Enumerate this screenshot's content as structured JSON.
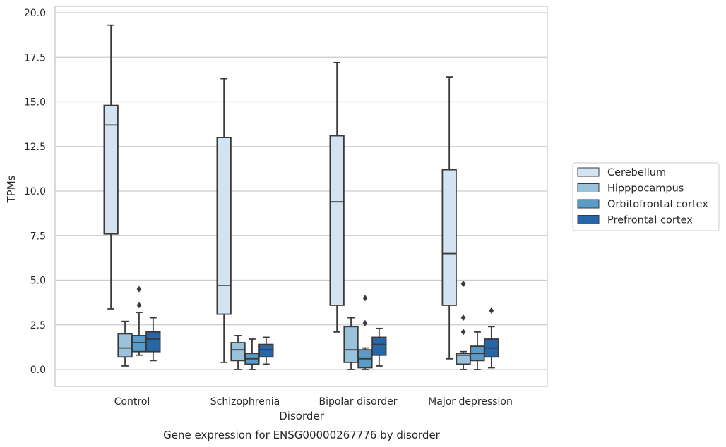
{
  "chart_data": {
    "type": "box",
    "title": "Gene expression for ENSG00000267776 by disorder",
    "xlabel": "Disorder",
    "ylabel": "TPMs",
    "ylim": [
      -0.9,
      20.3
    ],
    "yticks": [
      0.0,
      2.5,
      5.0,
      7.5,
      10.0,
      12.5,
      15.0,
      17.5,
      20.0
    ],
    "ytick_labels": [
      "0.0",
      "2.5",
      "5.0",
      "7.5",
      "10.0",
      "12.5",
      "15.0",
      "17.5",
      "20.0"
    ],
    "grid": "horizontal",
    "legend_position": "right",
    "categories": [
      "Control",
      "Schizophrenia",
      "Bipolar disorder",
      "Major depression"
    ],
    "series": [
      {
        "name": "Cerebellum",
        "color": "#d3e3f2",
        "boxes": [
          {
            "whislo": 3.4,
            "q1": 7.6,
            "med": 13.7,
            "q3": 14.8,
            "whishi": 19.3,
            "fliers": []
          },
          {
            "whislo": 0.4,
            "q1": 3.1,
            "med": 4.7,
            "q3": 13.0,
            "whishi": 16.3,
            "fliers": []
          },
          {
            "whislo": 2.1,
            "q1": 3.6,
            "med": 9.4,
            "q3": 13.1,
            "whishi": 17.2,
            "fliers": []
          },
          {
            "whislo": 0.6,
            "q1": 3.6,
            "med": 6.5,
            "q3": 11.2,
            "whishi": 16.4,
            "fliers": []
          }
        ]
      },
      {
        "name": "Hipppocampus",
        "color": "#9ac2db",
        "boxes": [
          {
            "whislo": 0.2,
            "q1": 0.7,
            "med": 1.2,
            "q3": 2.0,
            "whishi": 2.7,
            "fliers": []
          },
          {
            "whislo": 0.0,
            "q1": 0.5,
            "med": 1.1,
            "q3": 1.5,
            "whishi": 1.9,
            "fliers": []
          },
          {
            "whislo": 0.0,
            "q1": 0.4,
            "med": 1.1,
            "q3": 2.4,
            "whishi": 2.9,
            "fliers": []
          },
          {
            "whislo": 0.0,
            "q1": 0.3,
            "med": 0.8,
            "q3": 0.9,
            "whishi": 1.0,
            "fliers": [
              2.1,
              2.9,
              4.8
            ]
          }
        ]
      },
      {
        "name": "Orbitofrontal cortex",
        "color": "#5a9cc9",
        "boxes": [
          {
            "whislo": 0.8,
            "q1": 1.0,
            "med": 1.5,
            "q3": 1.9,
            "whishi": 3.2,
            "fliers": [
              3.6,
              4.5
            ]
          },
          {
            "whislo": 0.0,
            "q1": 0.3,
            "med": 0.6,
            "q3": 0.9,
            "whishi": 1.7,
            "fliers": []
          },
          {
            "whislo": 0.0,
            "q1": 0.1,
            "med": 0.6,
            "q3": 1.1,
            "whishi": 1.2,
            "fliers": [
              2.6,
              4.0
            ]
          },
          {
            "whislo": 0.0,
            "q1": 0.5,
            "med": 0.9,
            "q3": 1.3,
            "whishi": 2.1,
            "fliers": []
          }
        ]
      },
      {
        "name": "Prefrontal cortex",
        "color": "#2667a9",
        "boxes": [
          {
            "whislo": 0.5,
            "q1": 1.0,
            "med": 1.7,
            "q3": 2.1,
            "whishi": 2.9,
            "fliers": []
          },
          {
            "whislo": 0.3,
            "q1": 0.7,
            "med": 1.1,
            "q3": 1.4,
            "whishi": 1.8,
            "fliers": []
          },
          {
            "whislo": 0.2,
            "q1": 0.8,
            "med": 1.4,
            "q3": 1.8,
            "whishi": 2.3,
            "fliers": []
          },
          {
            "whislo": 0.1,
            "q1": 0.7,
            "med": 1.2,
            "q3": 1.7,
            "whishi": 2.4,
            "fliers": [
              3.3
            ]
          }
        ]
      }
    ]
  }
}
